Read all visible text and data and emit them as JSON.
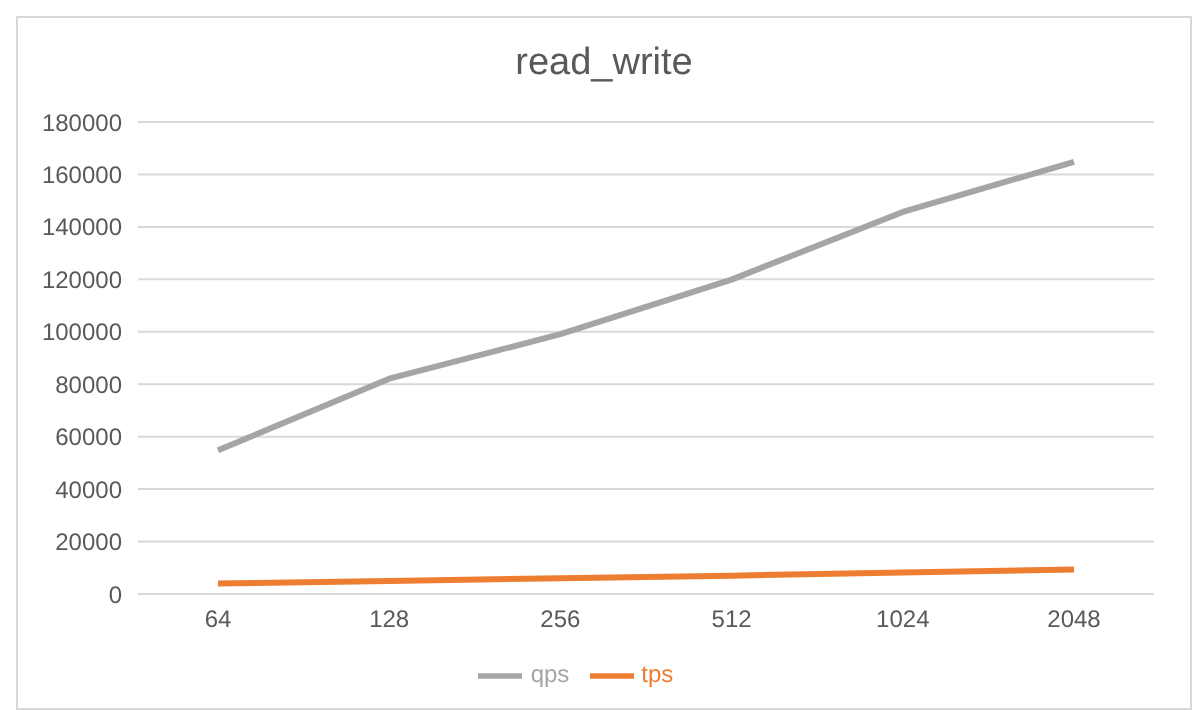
{
  "chart_data": {
    "type": "line",
    "title": "read_write",
    "categories": [
      "64",
      "128",
      "256",
      "512",
      "1024",
      "2048"
    ],
    "series": [
      {
        "name": "tps",
        "color": "#ed7d31",
        "values": [
          4000,
          5000,
          6000,
          7000,
          8200,
          9300
        ]
      },
      {
        "name": "qps",
        "color": "#a5a5a5",
        "values": [
          54800,
          82100,
          99100,
          119900,
          145700,
          164800
        ]
      }
    ],
    "ylim": [
      0,
      180000
    ],
    "yticks": [
      0,
      20000,
      40000,
      60000,
      80000,
      100000,
      120000,
      140000,
      160000,
      180000
    ],
    "grid": "y",
    "legend": "bottom",
    "marker": "none",
    "line_style": "solid"
  }
}
